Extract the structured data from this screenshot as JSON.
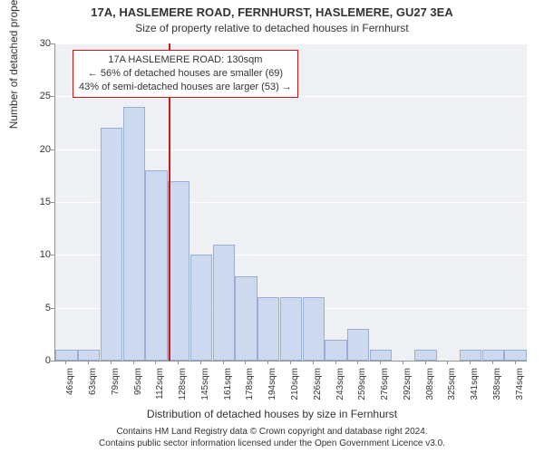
{
  "chart": {
    "type": "histogram",
    "title_main": "17A, HASLEMERE ROAD, FERNHURST, HASLEMERE, GU27 3EA",
    "title_sub": "Size of property relative to detached houses in Fernhurst",
    "x_axis_title": "Distribution of detached houses by size in Fernhurst",
    "y_axis_title": "Number of detached properties",
    "plot_background": "#eef0f4",
    "grid_color": "#ffffff",
    "axis_color": "#929292",
    "bar_fill": "#cdd9ee",
    "bar_border": "#99aed3",
    "marker_color": "#d01717",
    "ylim": [
      0,
      30
    ],
    "ytick_step": 5,
    "yticks": [
      0,
      5,
      10,
      15,
      20,
      25,
      30
    ],
    "xticks": [
      "46sqm",
      "63sqm",
      "79sqm",
      "95sqm",
      "112sqm",
      "128sqm",
      "145sqm",
      "161sqm",
      "178sqm",
      "194sqm",
      "210sqm",
      "226sqm",
      "243sqm",
      "259sqm",
      "276sqm",
      "292sqm",
      "308sqm",
      "325sqm",
      "341sqm",
      "358sqm",
      "374sqm"
    ],
    "values": [
      1,
      1,
      22,
      24,
      18,
      17,
      10,
      11,
      8,
      6,
      6,
      6,
      2,
      3,
      1,
      0,
      1,
      0,
      1,
      1,
      1
    ],
    "marker_x_index": 5.05,
    "callout": {
      "line1": "17A HASLEMERE ROAD: 130sqm",
      "line2": "← 56% of detached houses are smaller (69)",
      "line3": "43% of semi-detached houses are larger (53) →"
    },
    "footer_line1": "Contains HM Land Registry data © Crown copyright and database right 2024.",
    "footer_line2": "Contains public sector information licensed under the Open Government Licence v3.0.",
    "title_fontsize": 13,
    "label_fontsize": 12,
    "tick_fontsize": 11
  }
}
